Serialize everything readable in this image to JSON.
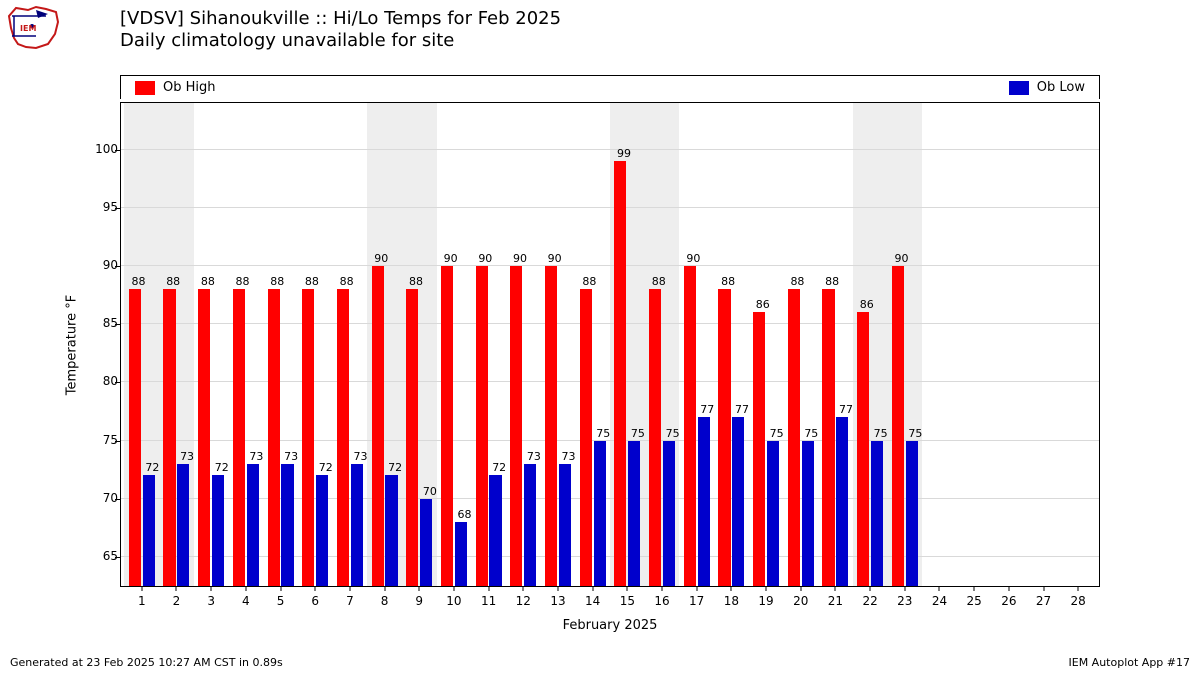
{
  "title_line1": "[VDSV] Sihanoukville :: Hi/Lo Temps for Feb 2025",
  "title_line2": "Daily climatology unavailable for site",
  "yaxis_label": "Temperature °F",
  "xaxis_label": "February 2025",
  "footer_left": "Generated at 23 Feb 2025 10:27 AM CST in 0.89s",
  "footer_right": "IEM Autoplot App #17",
  "legend": {
    "high": "Ob High",
    "low": "Ob Low"
  },
  "colors": {
    "high": "#ff0000",
    "low": "#0000cc",
    "weekend": "#eeeeee",
    "grid": "#d9d9d9",
    "bg": "#ffffff",
    "text": "#000000"
  },
  "yaxis": {
    "min": 62.5,
    "max": 104,
    "ticks": [
      65,
      70,
      75,
      80,
      85,
      90,
      95,
      100
    ],
    "grid_step": 5
  },
  "xaxis": {
    "min": 0.4,
    "max": 28.6,
    "days": 28
  },
  "weekend_days": [
    1,
    2,
    8,
    9,
    15,
    16,
    22,
    23
  ],
  "bar_width_days": 0.35,
  "bar_offset_days": 0.2,
  "highs": [
    88,
    88,
    88,
    88,
    88,
    88,
    88,
    90,
    88,
    90,
    90,
    90,
    90,
    88,
    99,
    88,
    90,
    88,
    86,
    88,
    88,
    86,
    90
  ],
  "lows": [
    72,
    73,
    72,
    73,
    73,
    72,
    73,
    72,
    70,
    68,
    72,
    73,
    73,
    75,
    75,
    75,
    77,
    77,
    75,
    75,
    77,
    75,
    75
  ]
}
